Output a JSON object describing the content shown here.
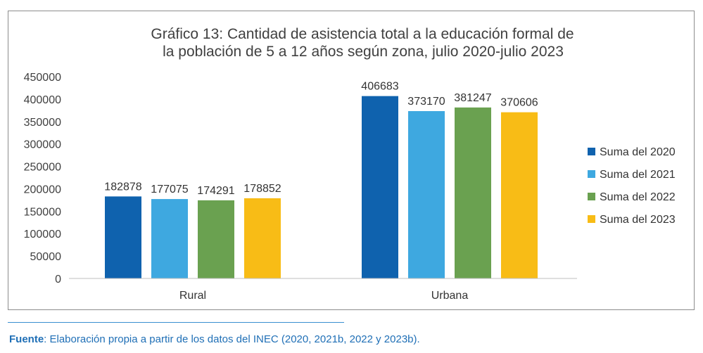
{
  "chart_data": {
    "type": "bar",
    "title": [
      "Gráfico 13: Cantidad de asistencia total a la educación formal de",
      "la población de 5 a 12 años según zona, julio 2020-julio 2023"
    ],
    "categories": [
      "Rural",
      "Urbana"
    ],
    "series": [
      {
        "name": "Suma del 2020",
        "color": "#0f62ae",
        "values": [
          182878,
          406683
        ]
      },
      {
        "name": "Suma del 2021",
        "color": "#3ea8e0",
        "values": [
          177075,
          373170
        ]
      },
      {
        "name": "Suma del 2022",
        "color": "#6aa150",
        "values": [
          174291,
          381247
        ]
      },
      {
        "name": "Suma del 2023",
        "color": "#f8bc16",
        "values": [
          178852,
          370606
        ]
      }
    ],
    "y_ticks": [
      "0",
      "50000",
      "100000",
      "150000",
      "200000",
      "250000",
      "300000",
      "350000",
      "400000",
      "450000"
    ],
    "ylim": [
      0,
      450000
    ],
    "xlabel": "",
    "ylabel": "",
    "grid": false,
    "legend_position": "right"
  },
  "source": {
    "label": "Fuente",
    "text": ": Elaboración propia a partir de los datos del INEC (2020, 2021b, 2022 y 2023b)."
  }
}
